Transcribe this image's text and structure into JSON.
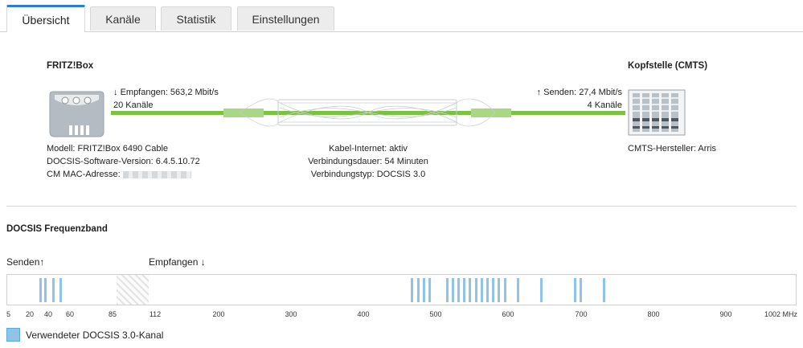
{
  "tabs": [
    {
      "label": "Übersicht",
      "active": true
    },
    {
      "label": "Kanäle",
      "active": false
    },
    {
      "label": "Statistik",
      "active": false
    },
    {
      "label": "Einstellungen",
      "active": false
    }
  ],
  "left_device": {
    "title": "FRITZ!Box",
    "rx_label": "Empfangen: 563,2 Mbit/s",
    "rx_arrow": "↓",
    "rx_channels": "20 Kanäle",
    "model": "Modell: FRITZ!Box 6490 Cable",
    "docsis_version": "DOCSIS-Software-Version: 6.4.5.10.72",
    "mac_label": "CM MAC-Adresse:"
  },
  "right_device": {
    "title": "Kopfstelle (CMTS)",
    "tx_arrow": "↑",
    "tx_label": "Senden: 27,4 Mbit/s",
    "tx_channels": "4 Kanäle",
    "manufacturer": "CMTS-Hersteller: Arris"
  },
  "connection": {
    "status": "Kabel-Internet: aktiv",
    "duration": "Verbindungsdauer: 54 Minuten",
    "type": "Verbindungstyp: DOCSIS 3.0"
  },
  "frequency_band": {
    "title": "DOCSIS Frequenzband",
    "send_label": "Senden",
    "send_arrow": "↑",
    "receive_label": "Empfangen",
    "receive_arrow": "↓",
    "axis_min": 5,
    "axis_max": 1002,
    "ticks": [
      "5",
      "20",
      "40",
      "60",
      "85",
      "112",
      "200",
      "300",
      "400",
      "500",
      "600",
      "700",
      "800",
      "900",
      "1002 MHz"
    ],
    "upstream_channels_mhz": [
      30,
      36,
      44,
      50
    ],
    "downstream_channels_mhz": [
      466,
      474,
      482,
      490,
      514,
      522,
      530,
      538,
      546,
      554,
      562,
      570,
      578,
      586,
      594,
      612,
      644,
      690,
      698,
      730
    ],
    "legend": "Verwendeter DOCSIS 3.0-Kanal",
    "channel_color": "#8fc3ea",
    "guard_band": "hatched"
  },
  "colors": {
    "accent": "#2b7fd3",
    "line_green": "#7cc142"
  }
}
